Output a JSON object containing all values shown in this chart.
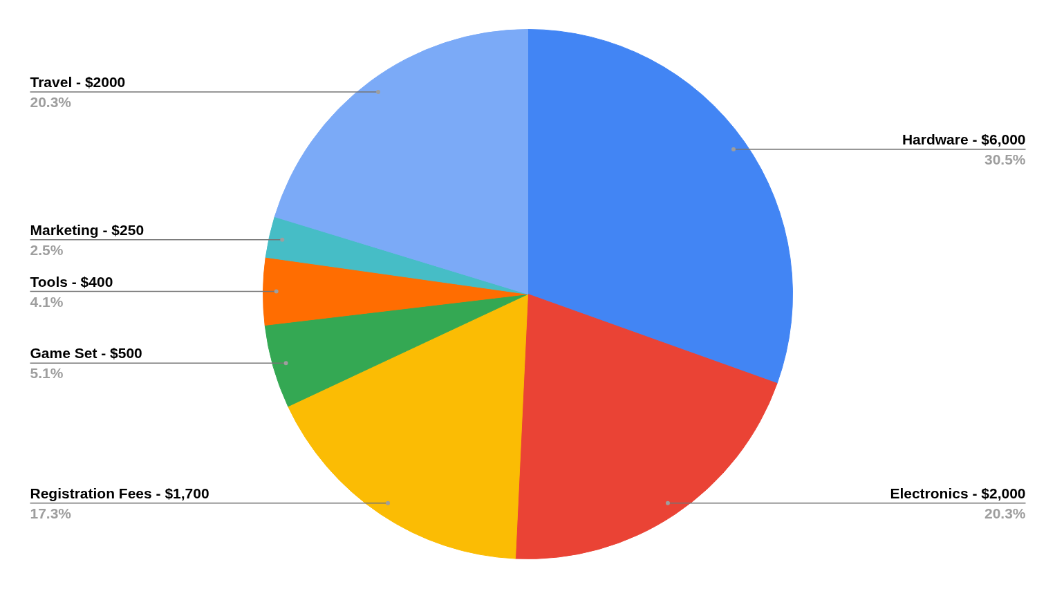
{
  "chart_data": {
    "type": "pie",
    "categories": [
      "Hardware - $6,000",
      "Electronics - $2,000",
      "Registration Fees - $1,700",
      "Game Set - $500",
      "Tools - $400",
      "Marketing - $250",
      "Travel - $2000"
    ],
    "values": [
      30.5,
      20.3,
      17.3,
      5.1,
      4.1,
      2.5,
      20.3
    ],
    "colors": [
      "#4285f4",
      "#ea4335",
      "#fbbc04",
      "#34a853",
      "#ff6d01",
      "#46bdc6",
      "#7baaf7"
    ],
    "value_labels": [
      "30.5%",
      "20.3%",
      "17.3%",
      "5.1%",
      "4.1%",
      "2.5%",
      "20.3%"
    ]
  }
}
